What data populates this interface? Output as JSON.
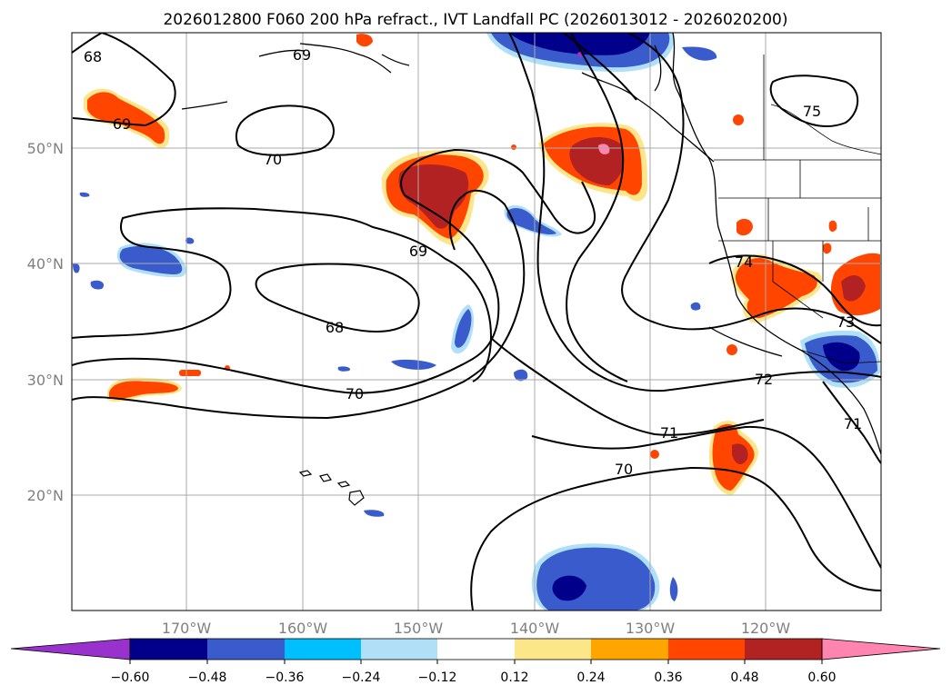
{
  "title": "2026012800 F060 200 hPa refract., IVT Landfall PC (2026013012 - 2026020200)",
  "map": {
    "lon_range": [
      -180,
      -110
    ],
    "lat_range": [
      10,
      60
    ],
    "lon_ticks": [
      -170,
      -160,
      -150,
      -140,
      -130,
      -120
    ],
    "lon_tick_labels": [
      "170°W",
      "160°W",
      "150°W",
      "140°W",
      "130°W",
      "120°W"
    ],
    "lat_ticks": [
      20,
      30,
      40,
      50
    ],
    "lat_tick_labels": [
      "20°N",
      "30°N",
      "40°N",
      "50°N"
    ],
    "gridlines": true
  },
  "contours": {
    "variable": "200 hPa refractivity",
    "levels_labeled": [
      "68",
      "69",
      "70",
      "71",
      "72",
      "73",
      "74",
      "75"
    ]
  },
  "colorbar": {
    "ticks": [
      "−0.60",
      "−0.48",
      "−0.36",
      "−0.24",
      "−0.12",
      "0.12",
      "0.24",
      "0.36",
      "0.48",
      "0.60"
    ],
    "colors": [
      "#9932cc",
      "#00008b",
      "#3a5bcc",
      "#00bfff",
      "#b0e0f8",
      "#ffffff",
      "#fde68a",
      "#ffa500",
      "#ff4500",
      "#b22222",
      "#ff85b0"
    ],
    "extend": "both"
  }
}
